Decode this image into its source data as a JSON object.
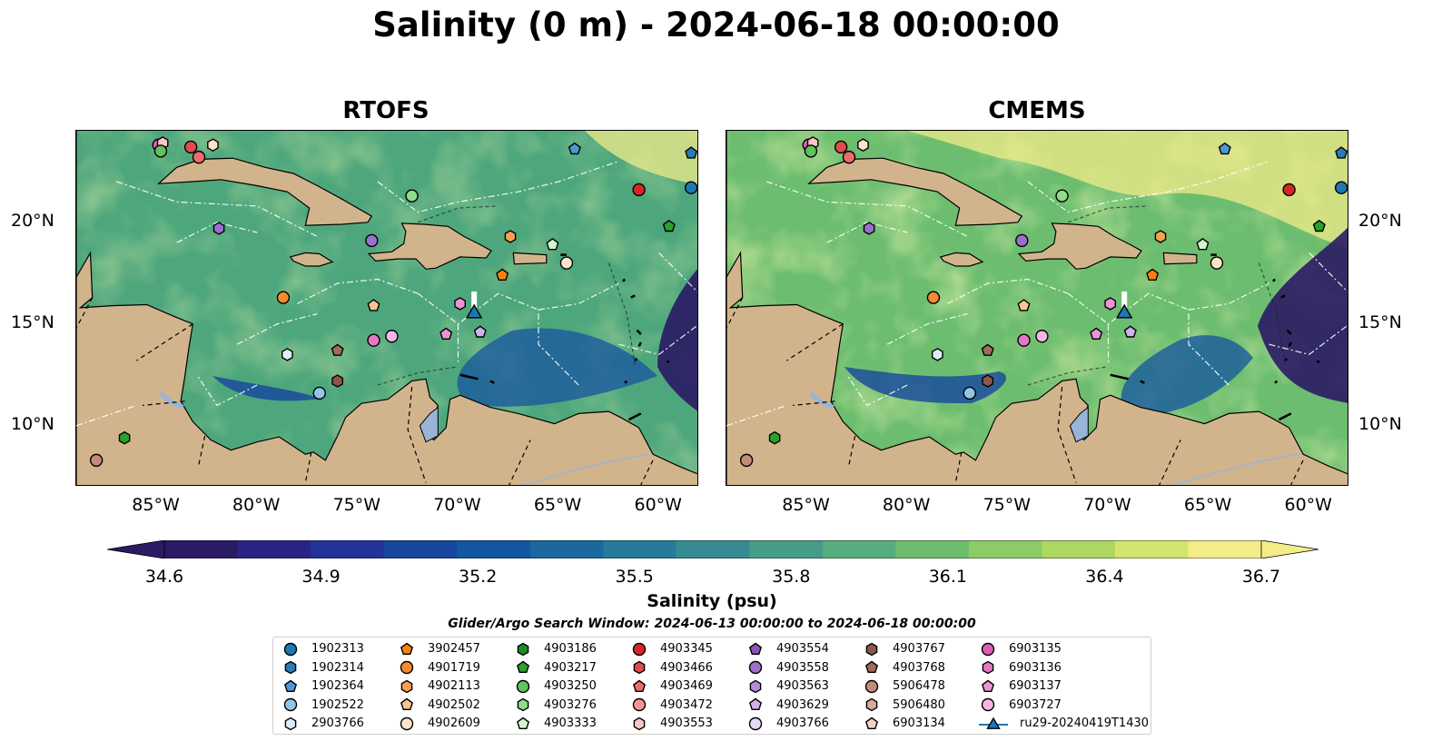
{
  "title": "Salinity (0 m) - 2024-06-18 00:00:00",
  "panels": [
    {
      "title": "RTOFS",
      "variant": "rtofs"
    },
    {
      "title": "CMEMS",
      "variant": "cmems"
    }
  ],
  "axes": {
    "lon_ticks": [
      "85°W",
      "80°W",
      "75°W",
      "70°W",
      "65°W",
      "60°W"
    ],
    "lat_ticks": [
      "20°N",
      "15°N",
      "10°N"
    ],
    "lon_range": [
      -89,
      -58
    ],
    "lat_range": [
      7,
      24.5
    ]
  },
  "colorbar": {
    "label": "Salinity (psu)",
    "ticks": [
      "34.6",
      "34.9",
      "35.2",
      "35.5",
      "35.8",
      "36.1",
      "36.4",
      "36.7"
    ],
    "vmin": 34.6,
    "vmax": 36.7,
    "extend": "both",
    "colors": [
      "#2b1a64",
      "#2a2585",
      "#22349a",
      "#17469e",
      "#12579f",
      "#1a689e",
      "#277a99",
      "#368b93",
      "#469c88",
      "#57ad7b",
      "#6dbd6f",
      "#8ccb66",
      "#add760",
      "#d2e46c",
      "#f4ec88"
    ]
  },
  "search_window": "Glider/Argo Search Window: 2024-06-13 00:00:00 to 2024-06-18 00:00:00",
  "colors": {
    "land": "#d2b48c",
    "ocean_deep": "#2b1a64",
    "ocean_main": "#56ad7a",
    "river": "#9ab4d8"
  },
  "legend": [
    {
      "label": "1902313",
      "marker": "circle",
      "color": "#1f77b4"
    },
    {
      "label": "1902314",
      "marker": "hexagon",
      "color": "#2b7bb5"
    },
    {
      "label": "1902364",
      "marker": "pentagon",
      "color": "#4c97d6"
    },
    {
      "label": "1902522",
      "marker": "circle",
      "color": "#93c4ea"
    },
    {
      "label": "2903766",
      "marker": "hexagon",
      "color": "#ddeefa"
    },
    {
      "label": "3902457",
      "marker": "pentagon",
      "color": "#ff7f0e"
    },
    {
      "label": "4901719",
      "marker": "circle",
      "color": "#f58a2e"
    },
    {
      "label": "4902113",
      "marker": "hexagon",
      "color": "#f7a24f"
    },
    {
      "label": "4902502",
      "marker": "pentagon",
      "color": "#f8c58c"
    },
    {
      "label": "4902609",
      "marker": "circle",
      "color": "#fde5c8"
    },
    {
      "label": "4903186",
      "marker": "hexagon",
      "color": "#1e8a24"
    },
    {
      "label": "4903217",
      "marker": "pentagon",
      "color": "#2ca02c"
    },
    {
      "label": "4903250",
      "marker": "circle",
      "color": "#5fc25c"
    },
    {
      "label": "4903276",
      "marker": "hexagon",
      "color": "#8fdc8a"
    },
    {
      "label": "4903333",
      "marker": "pentagon",
      "color": "#d2f7cc"
    },
    {
      "label": "4903345",
      "marker": "circle",
      "color": "#d62728"
    },
    {
      "label": "4903466",
      "marker": "hexagon",
      "color": "#e14b4b"
    },
    {
      "label": "4903469",
      "marker": "pentagon",
      "color": "#ee6b6b"
    },
    {
      "label": "4903472",
      "marker": "circle",
      "color": "#f49595"
    },
    {
      "label": "4903553",
      "marker": "hexagon",
      "color": "#fbc5c5"
    },
    {
      "label": "4903554",
      "marker": "pentagon",
      "color": "#8a56b8"
    },
    {
      "label": "4903558",
      "marker": "circle",
      "color": "#9c6fcb"
    },
    {
      "label": "4903563",
      "marker": "hexagon",
      "color": "#b48ddb"
    },
    {
      "label": "4903629",
      "marker": "pentagon",
      "color": "#cdb2ea"
    },
    {
      "label": "4903766",
      "marker": "circle",
      "color": "#e7daf6"
    },
    {
      "label": "4903767",
      "marker": "hexagon",
      "color": "#8c564b"
    },
    {
      "label": "4903768",
      "marker": "pentagon",
      "color": "#a06a5c"
    },
    {
      "label": "5906478",
      "marker": "circle",
      "color": "#c48a7a"
    },
    {
      "label": "5906480",
      "marker": "hexagon",
      "color": "#dca99b"
    },
    {
      "label": "6903134",
      "marker": "pentagon",
      "color": "#f2d2c4"
    },
    {
      "label": "6903135",
      "marker": "circle",
      "color": "#e05cb8"
    },
    {
      "label": "6903136",
      "marker": "hexagon",
      "color": "#e377c2"
    },
    {
      "label": "6903137",
      "marker": "pentagon",
      "color": "#ec94d3"
    },
    {
      "label": "6903727",
      "marker": "circle",
      "color": "#f5b6e3"
    },
    {
      "label": "ru29-20240419T1430",
      "marker": "triangle",
      "color": "#1f77b4"
    }
  ],
  "floats": [
    {
      "lon": -84.9,
      "lat": 23.8,
      "marker": "circle",
      "color": "#e05cb8"
    },
    {
      "lon": -84.7,
      "lat": 23.9,
      "marker": "hexagon",
      "color": "#fbc5c5"
    },
    {
      "lon": -84.8,
      "lat": 23.5,
      "marker": "circle",
      "color": "#5fc25c"
    },
    {
      "lon": -83.3,
      "lat": 23.7,
      "marker": "circle",
      "color": "#e14b4b"
    },
    {
      "lon": -82.9,
      "lat": 23.2,
      "marker": "circle",
      "color": "#ee6b6b"
    },
    {
      "lon": -82.2,
      "lat": 23.8,
      "marker": "hexagon",
      "color": "#fde5c8"
    },
    {
      "lon": -64.2,
      "lat": 23.6,
      "marker": "pentagon",
      "color": "#4c97d6"
    },
    {
      "lon": -58.4,
      "lat": 23.4,
      "marker": "pentagon",
      "color": "#2b7bb5"
    },
    {
      "lon": -72.3,
      "lat": 21.3,
      "marker": "circle",
      "color": "#8fdc8a"
    },
    {
      "lon": -61.0,
      "lat": 21.6,
      "marker": "circle",
      "color": "#d62728"
    },
    {
      "lon": -58.4,
      "lat": 21.7,
      "marker": "circle",
      "color": "#1f77b4"
    },
    {
      "lon": -81.9,
      "lat": 19.7,
      "marker": "hexagon",
      "color": "#9c6fcb"
    },
    {
      "lon": -74.3,
      "lat": 19.1,
      "marker": "circle",
      "color": "#9c6fcb"
    },
    {
      "lon": -67.4,
      "lat": 19.3,
      "marker": "hexagon",
      "color": "#f7a24f"
    },
    {
      "lon": -59.5,
      "lat": 19.8,
      "marker": "pentagon",
      "color": "#2ca02c"
    },
    {
      "lon": -65.3,
      "lat": 18.9,
      "marker": "pentagon",
      "color": "#d2f7cc"
    },
    {
      "lon": -64.6,
      "lat": 18.0,
      "marker": "circle",
      "color": "#fde5c8"
    },
    {
      "lon": -67.8,
      "lat": 17.4,
      "marker": "pentagon",
      "color": "#ff7f0e"
    },
    {
      "lon": -78.7,
      "lat": 16.3,
      "marker": "circle",
      "color": "#f58a2e"
    },
    {
      "lon": -74.2,
      "lat": 15.9,
      "marker": "pentagon",
      "color": "#f8c58c"
    },
    {
      "lon": -69.9,
      "lat": 16.0,
      "marker": "hexagon",
      "color": "#ec94d3"
    },
    {
      "lon": -70.6,
      "lat": 14.5,
      "marker": "pentagon",
      "color": "#ec94d3"
    },
    {
      "lon": -68.9,
      "lat": 14.6,
      "marker": "pentagon",
      "color": "#cdb2ea"
    },
    {
      "lon": -74.2,
      "lat": 14.2,
      "marker": "circle",
      "color": "#e377c2"
    },
    {
      "lon": -73.3,
      "lat": 14.4,
      "marker": "circle",
      "color": "#f5b6e3"
    },
    {
      "lon": -78.5,
      "lat": 13.5,
      "marker": "hexagon",
      "color": "#ddeefa"
    },
    {
      "lon": -76.0,
      "lat": 13.7,
      "marker": "pentagon",
      "color": "#a06a5c"
    },
    {
      "lon": -76.0,
      "lat": 12.2,
      "marker": "hexagon",
      "color": "#8c564b"
    },
    {
      "lon": -76.9,
      "lat": 11.6,
      "marker": "circle",
      "color": "#93c4ea"
    },
    {
      "lon": -86.6,
      "lat": 9.4,
      "marker": "hexagon",
      "color": "#2ca02c"
    },
    {
      "lon": -88.0,
      "lat": 8.3,
      "marker": "circle",
      "color": "#c48a7a"
    },
    {
      "lon": -69.2,
      "lat": 15.6,
      "marker": "triangle",
      "color": "#1f77b4"
    }
  ]
}
